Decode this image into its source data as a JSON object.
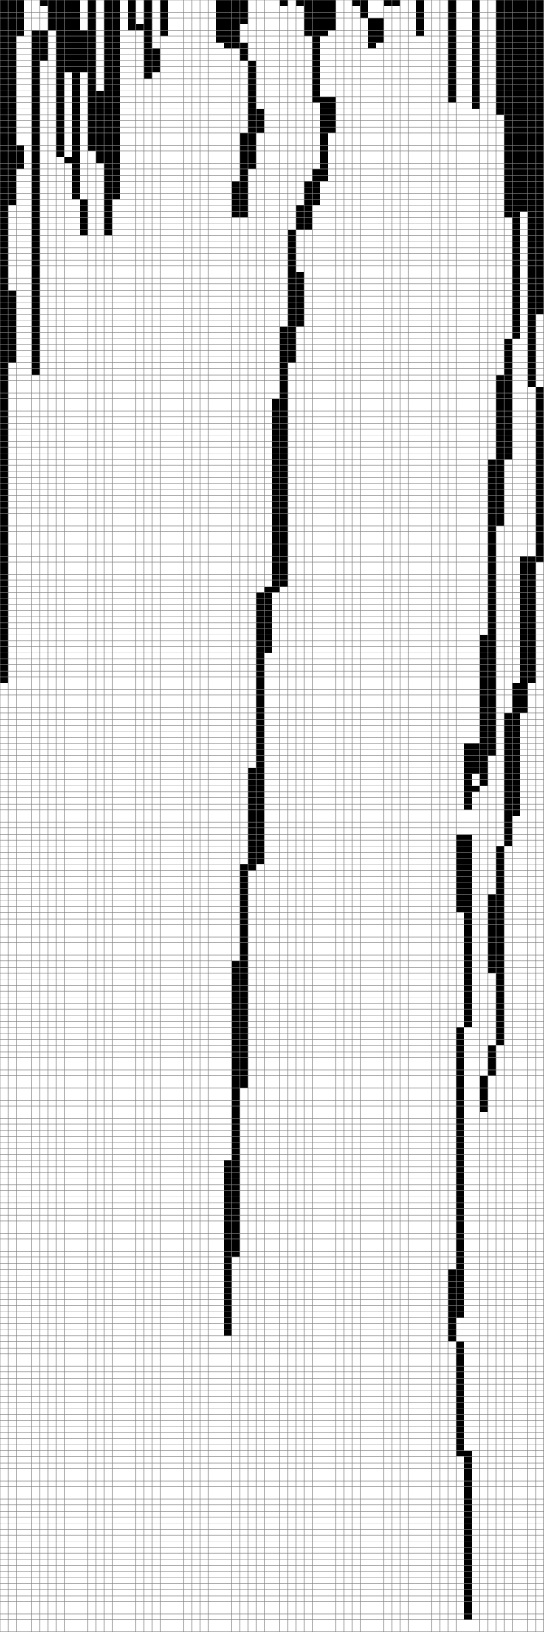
{
  "grid": {
    "columns": 68,
    "rows": 270,
    "cell_color": "#000000",
    "line_color": "#7f7f7f",
    "background": "#ffffff"
  },
  "trails": [
    {
      "name": "trail-left-main",
      "segments": [
        [
          0,
          0,
          2
        ],
        [
          0,
          24,
          1
        ],
        [
          0,
          48,
          2
        ],
        [
          0,
          60,
          1
        ],
        [
          0,
          107,
          1
        ]
      ]
    },
    {
      "name": "trail-left-branch-a",
      "segments": [
        [
          1,
          0,
          1
        ],
        [
          1,
          24,
          2
        ],
        [
          1,
          28,
          1
        ]
      ]
    },
    {
      "name": "trail-left-branch-b",
      "segments": [
        [
          2,
          0,
          1
        ],
        [
          2,
          5,
          1
        ],
        [
          4,
          5,
          2
        ],
        [
          4,
          10,
          1
        ],
        [
          4,
          56,
          1
        ]
      ]
    },
    {
      "name": "trail-left-cluster",
      "segments": [
        [
          5,
          0,
          3
        ],
        [
          6,
          0,
          4
        ],
        [
          7,
          5,
          4
        ],
        [
          7,
          12,
          1
        ],
        [
          8,
          26,
          1
        ],
        [
          9,
          12,
          1
        ],
        [
          9,
          20,
          1
        ],
        [
          10,
          33,
          1
        ]
      ]
    },
    {
      "name": "trail-left-cluster-b",
      "segments": [
        [
          11,
          0,
          1
        ],
        [
          11,
          24,
          1
        ],
        [
          12,
          15,
          2
        ],
        [
          12,
          26,
          1
        ],
        [
          13,
          0,
          2
        ],
        [
          13,
          33,
          1
        ]
      ]
    },
    {
      "name": "trail-upper-mid",
      "segments": [
        [
          16,
          0,
          1
        ],
        [
          16,
          4,
          1
        ],
        [
          17,
          4,
          2
        ],
        [
          18,
          0,
          1
        ],
        [
          18,
          8,
          2
        ],
        [
          18,
          12,
          1
        ],
        [
          19,
          10,
          1
        ],
        [
          20,
          0,
          1
        ]
      ]
    },
    {
      "name": "trail-center",
      "segments": [
        [
          27,
          0,
          4
        ],
        [
          27,
          4,
          3
        ],
        [
          28,
          7,
          1
        ],
        [
          29,
          7,
          2
        ],
        [
          30,
          8,
          1
        ],
        [
          31,
          10,
          1
        ],
        [
          31,
          18,
          2
        ],
        [
          30,
          22,
          2
        ],
        [
          30,
          28,
          1
        ],
        [
          29,
          30,
          2
        ]
      ]
    },
    {
      "name": "trail-center-b",
      "segments": [
        [
          35,
          0,
          1
        ],
        [
          37,
          0,
          1
        ],
        [
          38,
          0,
          4
        ],
        [
          38,
          5,
          3
        ],
        [
          39,
          5,
          1
        ],
        [
          39,
          16,
          1
        ],
        [
          40,
          16,
          2
        ],
        [
          40,
          22,
          1
        ],
        [
          39,
          28,
          2
        ],
        [
          38,
          30,
          2
        ],
        [
          37,
          34,
          2
        ],
        [
          36,
          38,
          1
        ],
        [
          36,
          45,
          2
        ],
        [
          35,
          54,
          2
        ],
        [
          35,
          60,
          1
        ]
      ]
    },
    {
      "name": "trail-center-long",
      "segments": [
        [
          34,
          66,
          2
        ],
        [
          33,
          97,
          2
        ],
        [
          32,
          98,
          2
        ],
        [
          32,
          108,
          1
        ],
        [
          31,
          127,
          2
        ],
        [
          31,
          143,
          1
        ],
        [
          30,
          143,
          1
        ],
        [
          30,
          150,
          1
        ],
        [
          29,
          159,
          2
        ],
        [
          29,
          180,
          1
        ],
        [
          28,
          192,
          2
        ],
        [
          28,
          208,
          1
        ],
        [
          28,
          215,
          1
        ]
      ]
    },
    {
      "name": "trail-upper-right",
      "segments": [
        [
          44,
          0,
          2
        ],
        [
          45,
          0,
          1
        ],
        [
          46,
          3,
          2
        ],
        [
          46,
          7,
          1
        ],
        [
          47,
          3,
          1
        ],
        [
          48,
          0,
          1
        ],
        [
          49,
          0,
          1
        ],
        [
          52,
          0,
          1
        ]
      ]
    },
    {
      "name": "trail-right-pair",
      "segments": [
        [
          56,
          0,
          1
        ],
        [
          56,
          16,
          1
        ],
        [
          59,
          0,
          1
        ],
        [
          59,
          12,
          1
        ]
      ]
    },
    {
      "name": "trail-right-main",
      "segments": [
        [
          62,
          0,
          1
        ],
        [
          62,
          18,
          1
        ],
        [
          63,
          0,
          3
        ],
        [
          63,
          35,
          2
        ],
        [
          64,
          35,
          1
        ],
        [
          64,
          48,
          1
        ],
        [
          63,
          56,
          1
        ],
        [
          62,
          62,
          2
        ],
        [
          61,
          76,
          2
        ],
        [
          61,
          87,
          1
        ],
        [
          60,
          105,
          2
        ],
        [
          60,
          125,
          1
        ],
        [
          59,
          130,
          1
        ],
        [
          58,
          123,
          2
        ],
        [
          58,
          128,
          1
        ]
      ]
    },
    {
      "name": "trail-right-branch",
      "segments": [
        [
          66,
          0,
          2
        ],
        [
          66,
          52,
          1
        ],
        [
          67,
          64,
          1
        ],
        [
          67,
          92,
          1
        ],
        [
          65,
          92,
          2
        ],
        [
          64,
          113,
          2
        ],
        [
          63,
          118,
          2
        ],
        [
          63,
          135,
          1
        ],
        [
          62,
          140,
          1
        ],
        [
          61,
          148,
          2
        ],
        [
          61,
          160,
          1
        ],
        [
          62,
          160,
          1
        ],
        [
          62,
          169,
          1
        ],
        [
          61,
          173,
          1
        ],
        [
          60,
          178,
          1
        ]
      ]
    },
    {
      "name": "trail-right-lower",
      "segments": [
        [
          57,
          138,
          2
        ],
        [
          57,
          150,
          1
        ],
        [
          58,
          145,
          1
        ],
        [
          58,
          160,
          1
        ],
        [
          57,
          170,
          1
        ],
        [
          57,
          205,
          1
        ],
        [
          56,
          210,
          2
        ],
        [
          56,
          218,
          1
        ],
        [
          57,
          222,
          1
        ],
        [
          57,
          240,
          1
        ],
        [
          58,
          240,
          1
        ],
        [
          58,
          248,
          1
        ],
        [
          58,
          255,
          1
        ],
        [
          58,
          262,
          1
        ]
      ]
    }
  ]
}
